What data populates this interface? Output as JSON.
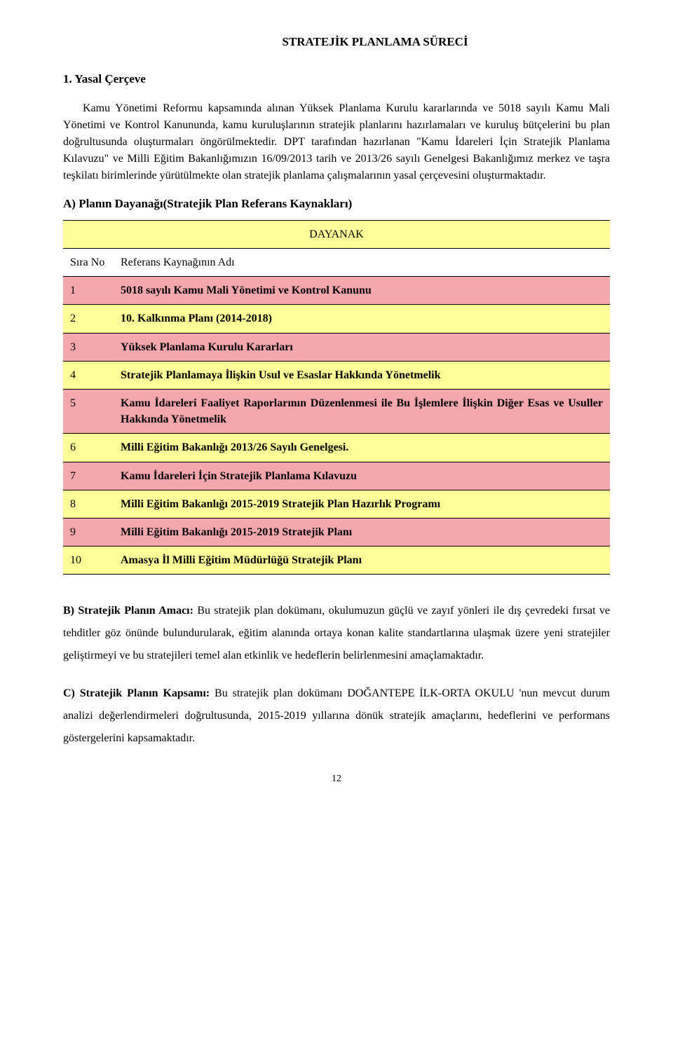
{
  "colors": {
    "header_bg": "#ffff99",
    "row_alt_a": "#f4a7ad",
    "row_alt_b": "#ffff99",
    "text": "#000000",
    "page_bg": "#ffffff"
  },
  "title": "STRATEJİK PLANLAMA SÜRECİ",
  "heading1": "1. Yasal Çerçeve",
  "paragraph1": "Kamu Yönetimi Reformu kapsamında alınan Yüksek Planlama Kurulu kararlarında ve 5018 sayılı Kamu Mali Yönetimi ve Kontrol Kanununda, kamu kuruluşlarının stratejik planlarını hazırlamaları ve kuruluş bütçelerini bu plan doğrultusunda oluşturmaları öngörülmektedir.  DPT tarafından hazırlanan \"Kamu İdareleri İçin Stratejik Planlama Kılavuzu\" ve Milli Eğitim Bakanlığımızın 16/09/2013 tarih ve 2013/26 sayılı Genelgesi Bakanlığımız merkez ve taşra teşkilatı birimlerinde yürütülmekte olan stratejik planlama çalışmalarının yasal çerçevesini oluşturmaktadır.",
  "subheadingA": "A) Planın Dayanağı(Stratejik Plan Referans Kaynakları)",
  "table": {
    "header_title": "DAYANAK",
    "col1": "Sıra No",
    "col2": "Referans Kaynağının Adı",
    "rows": [
      {
        "n": "1",
        "name": "5018 sayılı Kamu Mali Yönetimi ve Kontrol Kanunu"
      },
      {
        "n": "2",
        "name": "10. Kalkınma Planı (2014-2018)"
      },
      {
        "n": "3",
        "name": "Yüksek Planlama Kurulu Kararları"
      },
      {
        "n": "4",
        "name": "Stratejik Planlamaya İlişkin Usul ve Esaslar Hakkında Yönetmelik"
      },
      {
        "n": "5",
        "name": "Kamu İdareleri Faaliyet Raporlarının Düzenlenmesi ile Bu İşlemlere İlişkin Diğer Esas ve Usuller Hakkında Yönetmelik"
      },
      {
        "n": "6",
        "name": "Milli Eğitim Bakanlığı 2013/26 Sayılı Genelgesi."
      },
      {
        "n": "7",
        "name": "Kamu İdareleri İçin Stratejik Planlama Kılavuzu"
      },
      {
        "n": "8",
        "name": "Milli Eğitim Bakanlığı 2015-2019 Stratejik Plan Hazırlık Programı"
      },
      {
        "n": "9",
        "name": "Milli Eğitim Bakanlığı 2015-2019 Stratejik Planı"
      },
      {
        "n": "10",
        "name": "Amasya İl Milli Eğitim Müdürlüğü Stratejik Planı"
      }
    ],
    "row_bg_colors": [
      "#f4a7ad",
      "#ffff99",
      "#f4a7ad",
      "#ffff99",
      "#f4a7ad",
      "#ffff99",
      "#f4a7ad",
      "#ffff99",
      "#f4a7ad",
      "#ffff99"
    ],
    "justify_rows": [
      4
    ]
  },
  "sectionB_lead": "B) Stratejik Planın Amacı: ",
  "sectionB_body": "Bu stratejik plan dokümanı, okulumuzun güçlü ve zayıf yönleri ile dış çevredeki fırsat ve tehditler göz önünde bulundurularak, eğitim alanında ortaya konan kalite standartlarına ulaşmak üzere yeni stratejiler geliştirmeyi ve bu stratejileri temel alan etkinlik ve hedeflerin belirlenmesini amaçlamaktadır.",
  "sectionC_lead": "C) Stratejik Planın Kapsamı: ",
  "sectionC_body": "Bu stratejik plan dokümanı  DOĞANTEPE İLK-ORTA OKULU 'nun mevcut durum analizi değerlendirmeleri doğrultusunda, 2015-2019 yıllarına dönük stratejik amaçlarını, hedeflerini ve performans göstergelerini kapsamaktadır.",
  "page_number": "12"
}
